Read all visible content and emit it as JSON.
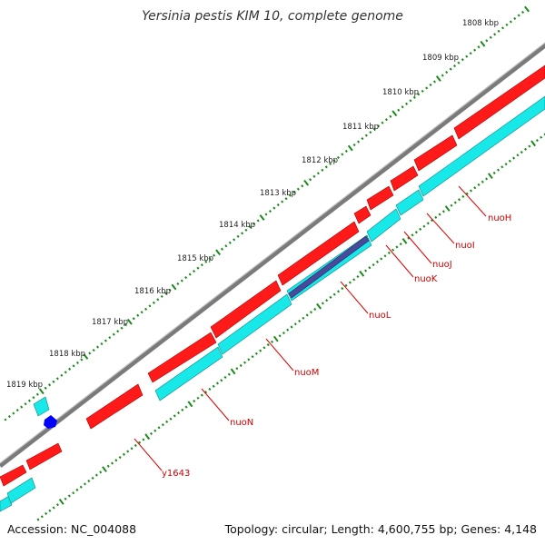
{
  "title": "Yersinia pestis KIM 10, complete genome",
  "footer": {
    "accession": "Accession: NC_004088",
    "summary": "Topology: circular; Length: 4,600,755 bp; Genes: 4,148"
  },
  "colors": {
    "backbone": "#7a7a7a",
    "forward_gene": "#ff1a1a",
    "reverse_gene": "#18e8e8",
    "other_feature": "#4a4a9a",
    "blue_marker": "#0000ff",
    "tick": "#1a8a1a",
    "label_line": "#dd0000"
  },
  "kbp_labels": [
    "1808 kbp",
    "1809 kbp",
    "1810 kbp",
    "1811 kbp",
    "1812 kbp",
    "1813 kbp",
    "1814 kbp",
    "1815 kbp",
    "1816 kbp",
    "1817 kbp",
    "1818 kbp",
    "1819 kbp"
  ],
  "gene_labels": [
    "nuoH",
    "nuoI",
    "nuoJ",
    "nuoK",
    "nuoL",
    "nuoM",
    "nuoN",
    "y1643"
  ]
}
